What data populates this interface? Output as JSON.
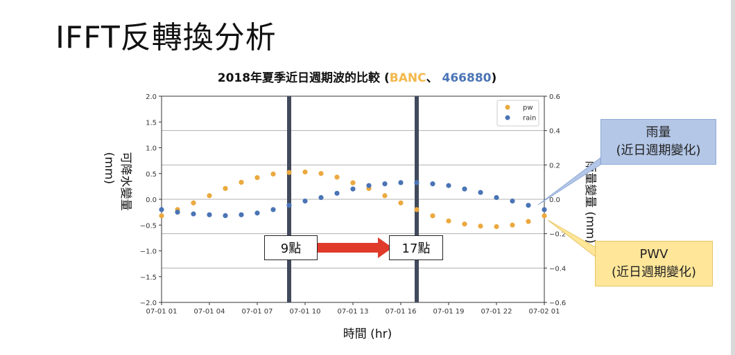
{
  "slide": {
    "title": "IFFT反轉換分析"
  },
  "annotations": {
    "rain_line1": "雨量",
    "rain_line2": "(近日週期變化)",
    "pwv_line1": "PWV",
    "pwv_line2": "(近日週期變化)",
    "time_start": "9點",
    "time_end": "17點",
    "colors": {
      "rain_callout": "#b4c7e7",
      "pwv_callout": "#ffe699",
      "arrow": "#e03a2a",
      "marker_line": "#414a5c"
    }
  },
  "chart_data": {
    "type": "scatter",
    "title_parts": [
      "2018年夏季近日週期波的比較 (",
      "BANC",
      "、 ",
      "466880",
      ")"
    ],
    "title_colors": [
      "#111111",
      "#f2b84b",
      "#111111",
      "#4a74b5",
      "#111111"
    ],
    "xlabel": "時間 (hr)",
    "ylabel_left": "可降水變量",
    "ylabel_left_unit": "(mm)",
    "ylabel_right": "雨量變量 (mm)",
    "x_ticks": [
      "07-01 01",
      "07-01 04",
      "07-01 07",
      "07-01 10",
      "07-01 13",
      "07-01 16",
      "07-01 19",
      "07-01 22",
      "07-02 01"
    ],
    "x": [
      "07-01 01",
      "07-01 02",
      "07-01 03",
      "07-01 04",
      "07-01 05",
      "07-01 06",
      "07-01 07",
      "07-01 08",
      "07-01 09",
      "07-01 10",
      "07-01 11",
      "07-01 12",
      "07-01 13",
      "07-01 14",
      "07-01 15",
      "07-01 16",
      "07-01 17",
      "07-01 18",
      "07-01 19",
      "07-01 20",
      "07-01 21",
      "07-01 22",
      "07-01 23",
      "07-02 00",
      "07-02 01"
    ],
    "ylim_left": [
      -2.0,
      2.0
    ],
    "yticks_left": [
      "2.0",
      "1.5",
      "1.0",
      "0.5",
      "0.0",
      "−0.5",
      "−1.0",
      "−1.5",
      "−2.0"
    ],
    "ylim_right": [
      -0.6,
      0.6
    ],
    "yticks_right": [
      "0.6",
      "0.4",
      "0.2",
      "0.0",
      "−0.2",
      "−0.4",
      "−0.6"
    ],
    "grid": "horizontal, right axis",
    "legend_position": "top-right",
    "series": [
      {
        "name": "pw",
        "axis": "left",
        "color": "#eba93f",
        "values": [
          -0.32,
          -0.2,
          -0.07,
          0.07,
          0.21,
          0.33,
          0.42,
          0.49,
          0.52,
          0.53,
          0.5,
          0.43,
          0.32,
          0.21,
          0.07,
          -0.07,
          -0.2,
          -0.32,
          -0.42,
          -0.48,
          -0.52,
          -0.53,
          -0.5,
          -0.43,
          -0.32
        ]
      },
      {
        "name": "rain",
        "axis": "right",
        "color": "#4a74b5",
        "values": [
          -0.06,
          -0.075,
          -0.085,
          -0.09,
          -0.095,
          -0.09,
          -0.08,
          -0.06,
          -0.035,
          -0.01,
          0.01,
          0.035,
          0.06,
          0.08,
          0.09,
          0.097,
          0.097,
          0.09,
          0.08,
          0.06,
          0.04,
          0.01,
          -0.01,
          -0.035,
          -0.06
        ]
      }
    ],
    "vertical_markers": [
      "07-01 09",
      "07-01 17"
    ]
  }
}
